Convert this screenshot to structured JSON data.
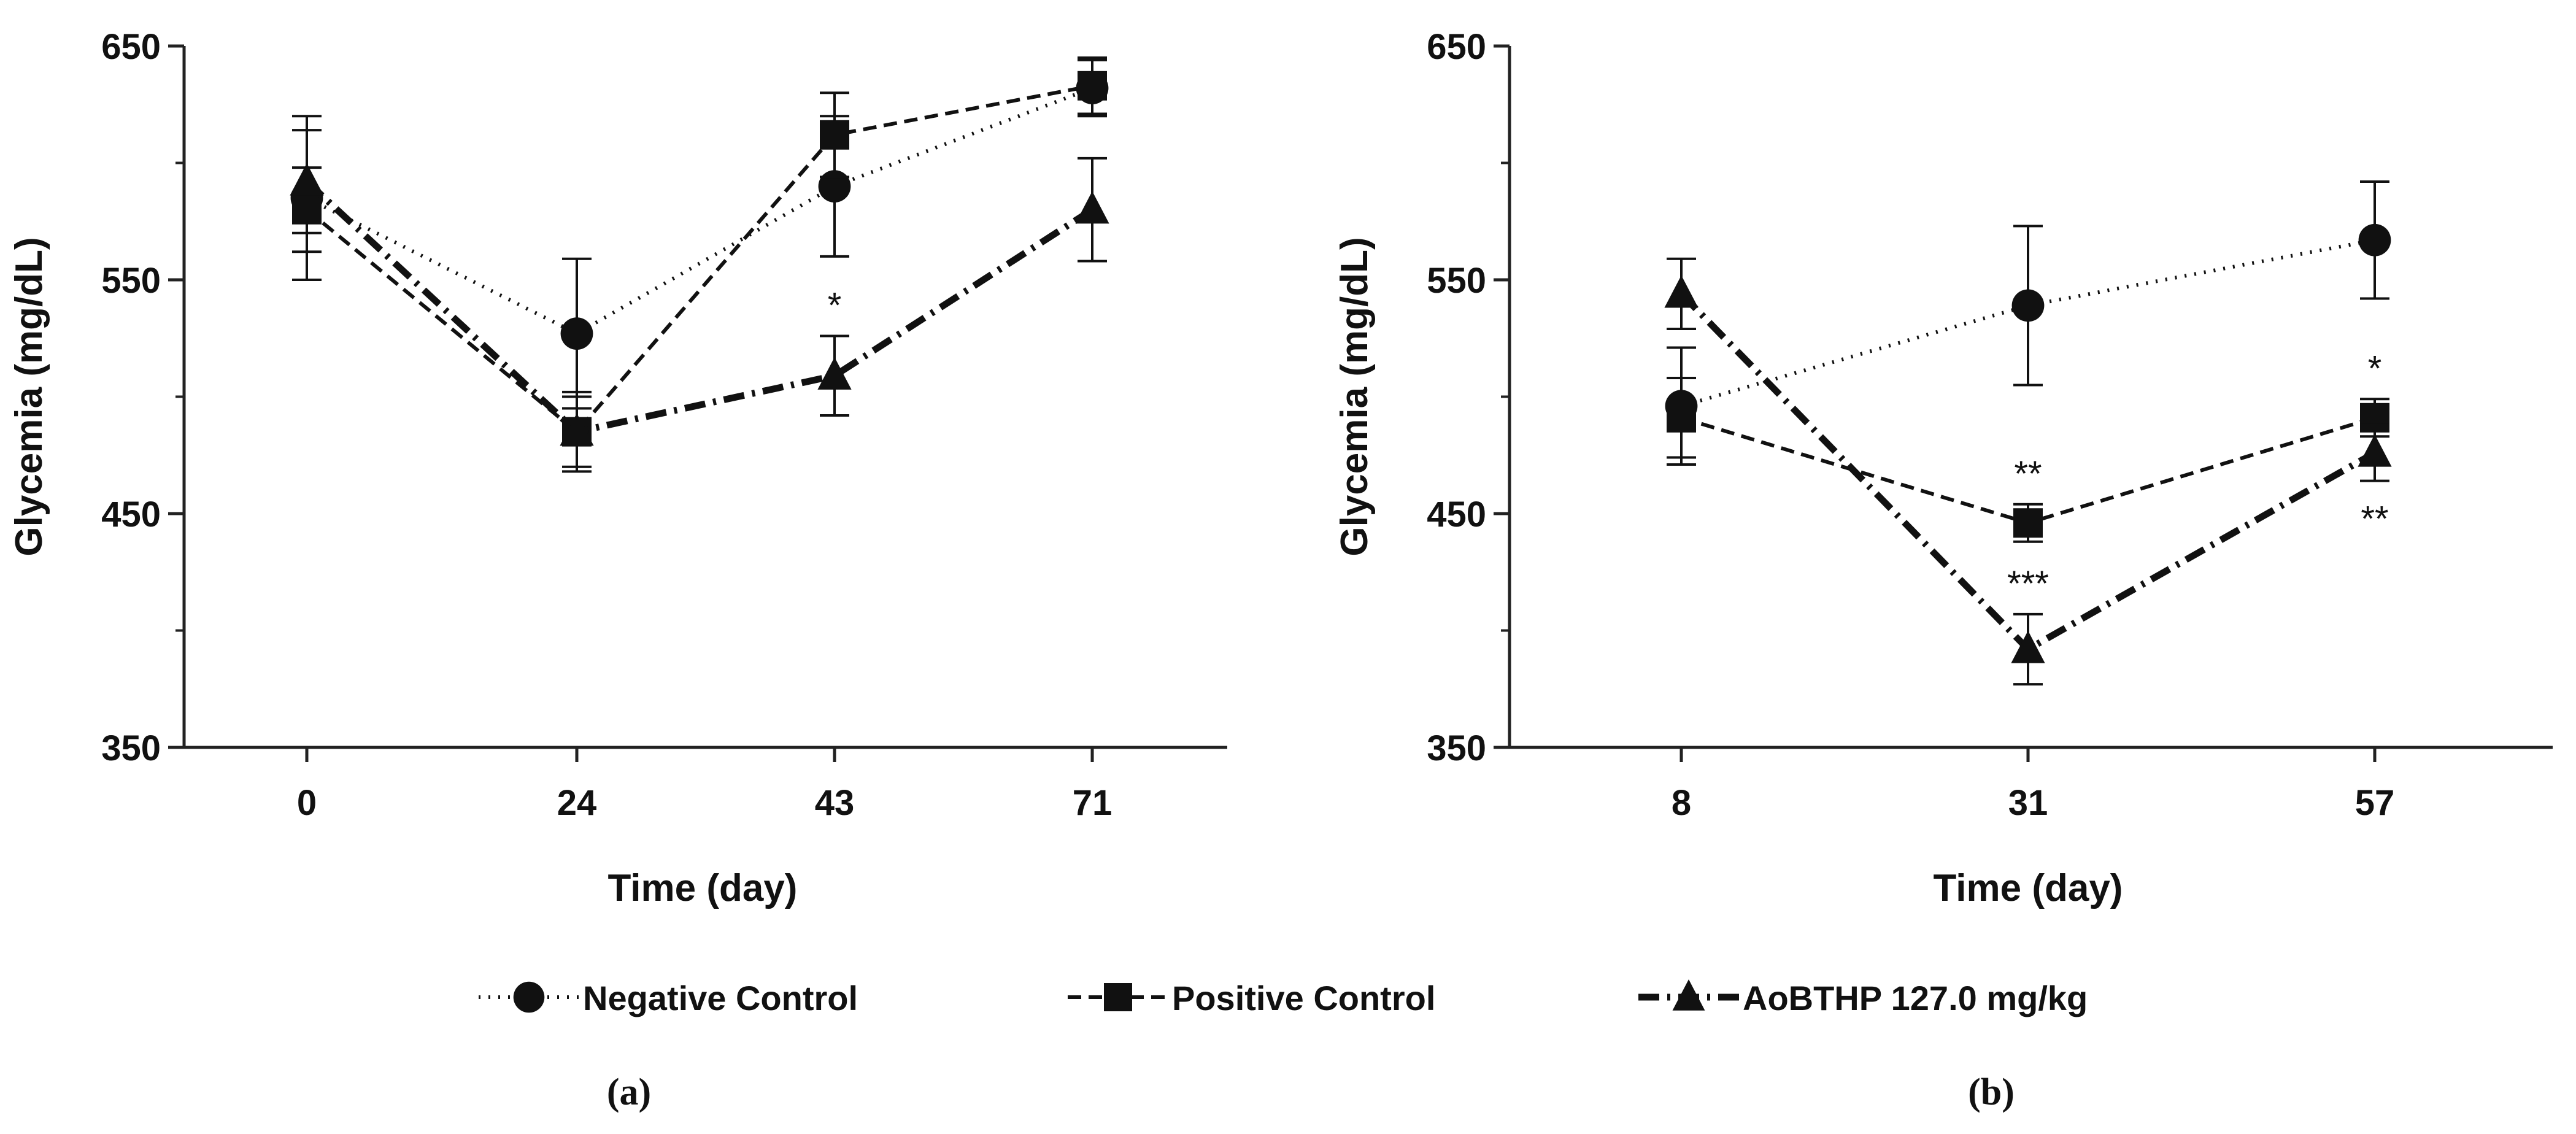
{
  "chart_data": [
    {
      "type": "line",
      "panel_label": "(a)",
      "xlabel": "Time (day)",
      "ylabel": "Glycemia (mg/dL)",
      "ylim": [
        350,
        650
      ],
      "yticks": [
        "350",
        "450",
        "550",
        "650"
      ],
      "categories": [
        "0",
        "24",
        "43",
        "71"
      ],
      "series": [
        {
          "name": "Negative Control",
          "values": [
            585,
            527,
            590,
            632
          ],
          "err": [
            35,
            32,
            30,
            12
          ]
        },
        {
          "name": "Positive Control",
          "values": [
            580,
            485,
            612,
            633
          ],
          "err": [
            18,
            15,
            18,
            12
          ]
        },
        {
          "name": "AoBTHP 127.0 mg/kg",
          "values": [
            592,
            485,
            509,
            580
          ],
          "err": [
            22,
            17,
            17,
            22
          ]
        }
      ],
      "annotations": [
        {
          "series": 2,
          "index": 2,
          "text": "*",
          "pos": "above"
        }
      ]
    },
    {
      "type": "line",
      "panel_label": "(b)",
      "xlabel": "Time (day)",
      "ylabel": "Glycemia (mg/dL)",
      "ylim": [
        350,
        650
      ],
      "yticks": [
        "350",
        "450",
        "550",
        "650"
      ],
      "categories": [
        "8",
        "31",
        "57"
      ],
      "series": [
        {
          "name": "Negative Control",
          "values": [
            496,
            539,
            567
          ],
          "err": [
            25,
            34,
            25
          ]
        },
        {
          "name": "Positive Control",
          "values": [
            491,
            446,
            491
          ],
          "err": [
            17,
            8,
            8
          ]
        },
        {
          "name": "AoBTHP 127.0 mg/kg",
          "values": [
            544,
            392,
            476
          ],
          "err": [
            15,
            15,
            12
          ]
        }
      ],
      "annotations": [
        {
          "series": 1,
          "index": 1,
          "text": "**",
          "pos": "above"
        },
        {
          "series": 2,
          "index": 1,
          "text": "***",
          "pos": "above"
        },
        {
          "series": 1,
          "index": 2,
          "text": "*",
          "pos": "above"
        },
        {
          "series": 2,
          "index": 2,
          "text": "**",
          "pos": "below"
        }
      ]
    }
  ],
  "legend": [
    {
      "name": "Negative Control",
      "marker": "circle",
      "dash": "dotted"
    },
    {
      "name": "Positive Control",
      "marker": "square",
      "dash": "dashed"
    },
    {
      "name": "AoBTHP 127.0 mg/kg",
      "marker": "triangle",
      "dash": "dash-dot"
    }
  ],
  "colors": {
    "ink": "#111111",
    "axis": "#222222"
  }
}
